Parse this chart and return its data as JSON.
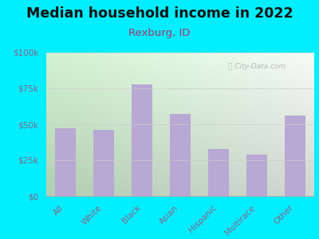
{
  "title": "Median household income in 2022",
  "subtitle": "Rexburg, ID",
  "categories": [
    "All",
    "White",
    "Black",
    "Asian",
    "Hispanic",
    "Multirace",
    "Other"
  ],
  "values": [
    47000,
    46000,
    78000,
    57000,
    33000,
    29000,
    56000
  ],
  "bar_color": "#b8a8d4",
  "background_outer": "#00eeff",
  "title_color": "#111111",
  "subtitle_color": "#aa3366",
  "tick_label_color": "#886688",
  "watermark": "City-Data.com",
  "ylim": [
    0,
    100000
  ],
  "yticks": [
    0,
    25000,
    50000,
    75000,
    100000
  ],
  "ytick_labels": [
    "$0",
    "$25k",
    "$50k",
    "$75k",
    "$100k"
  ],
  "title_fontsize": 12.5,
  "subtitle_fontsize": 9.5,
  "tick_fontsize": 7.5
}
